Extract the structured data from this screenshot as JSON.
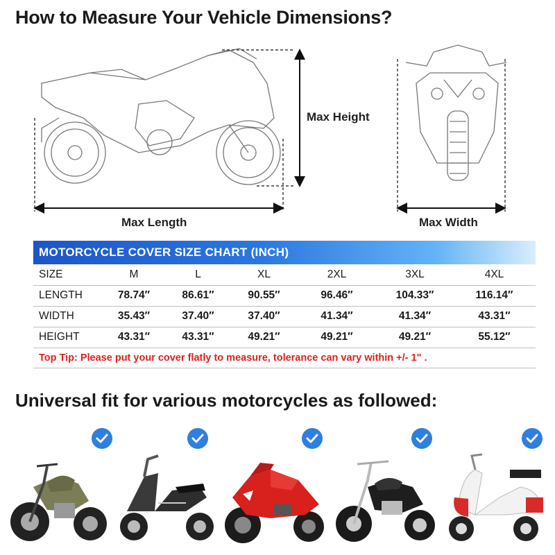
{
  "heading_measure": "How to Measure Your Vehicle Dimensions?",
  "dimension_labels": {
    "max_height": "Max Height",
    "max_length": "Max Length",
    "max_width": "Max Width"
  },
  "size_chart": {
    "title": "MOTORCYCLE COVER SIZE CHART (INCH)",
    "header": {
      "label": "SIZE",
      "sizes": [
        "M",
        "L",
        "XL",
        "2XL",
        "3XL",
        "4XL"
      ]
    },
    "rows": [
      {
        "label": "LENGTH",
        "values": [
          "78.74″",
          "86.61″",
          "90.55″",
          "96.46″",
          "104.33″",
          "116.14″"
        ]
      },
      {
        "label": "WIDTH",
        "values": [
          "35.43″",
          "37.40″",
          "37.40″",
          "41.34″",
          "41.34″",
          "43.31″"
        ]
      },
      {
        "label": "HEIGHT",
        "values": [
          "43.31″",
          "43.31″",
          "49.21″",
          "49.21″",
          "49.21″",
          "55.12″"
        ]
      }
    ],
    "tip": "Top Tip: Please put your cover flatly to measure, tolerance can vary within +/- 1\" ."
  },
  "heading_fit": "Universal fit for various motorcycles as followed:",
  "gallery": {
    "items": [
      {
        "kind": "cruiser",
        "icon": "check-icon"
      },
      {
        "kind": "scooter",
        "icon": "check-icon"
      },
      {
        "kind": "sport-bike",
        "icon": "check-icon"
      },
      {
        "kind": "chopper",
        "icon": "check-icon"
      },
      {
        "kind": "vintage-scooter",
        "icon": "check-icon"
      }
    ]
  },
  "colors": {
    "chart_blue": "#1d55c8",
    "check_blue": "#2e7fe0",
    "tip_red": "#e0201c",
    "cruiser_green": "#7b7d57",
    "sport_red": "#d8201c",
    "vintage_red": "#d92a2a"
  }
}
